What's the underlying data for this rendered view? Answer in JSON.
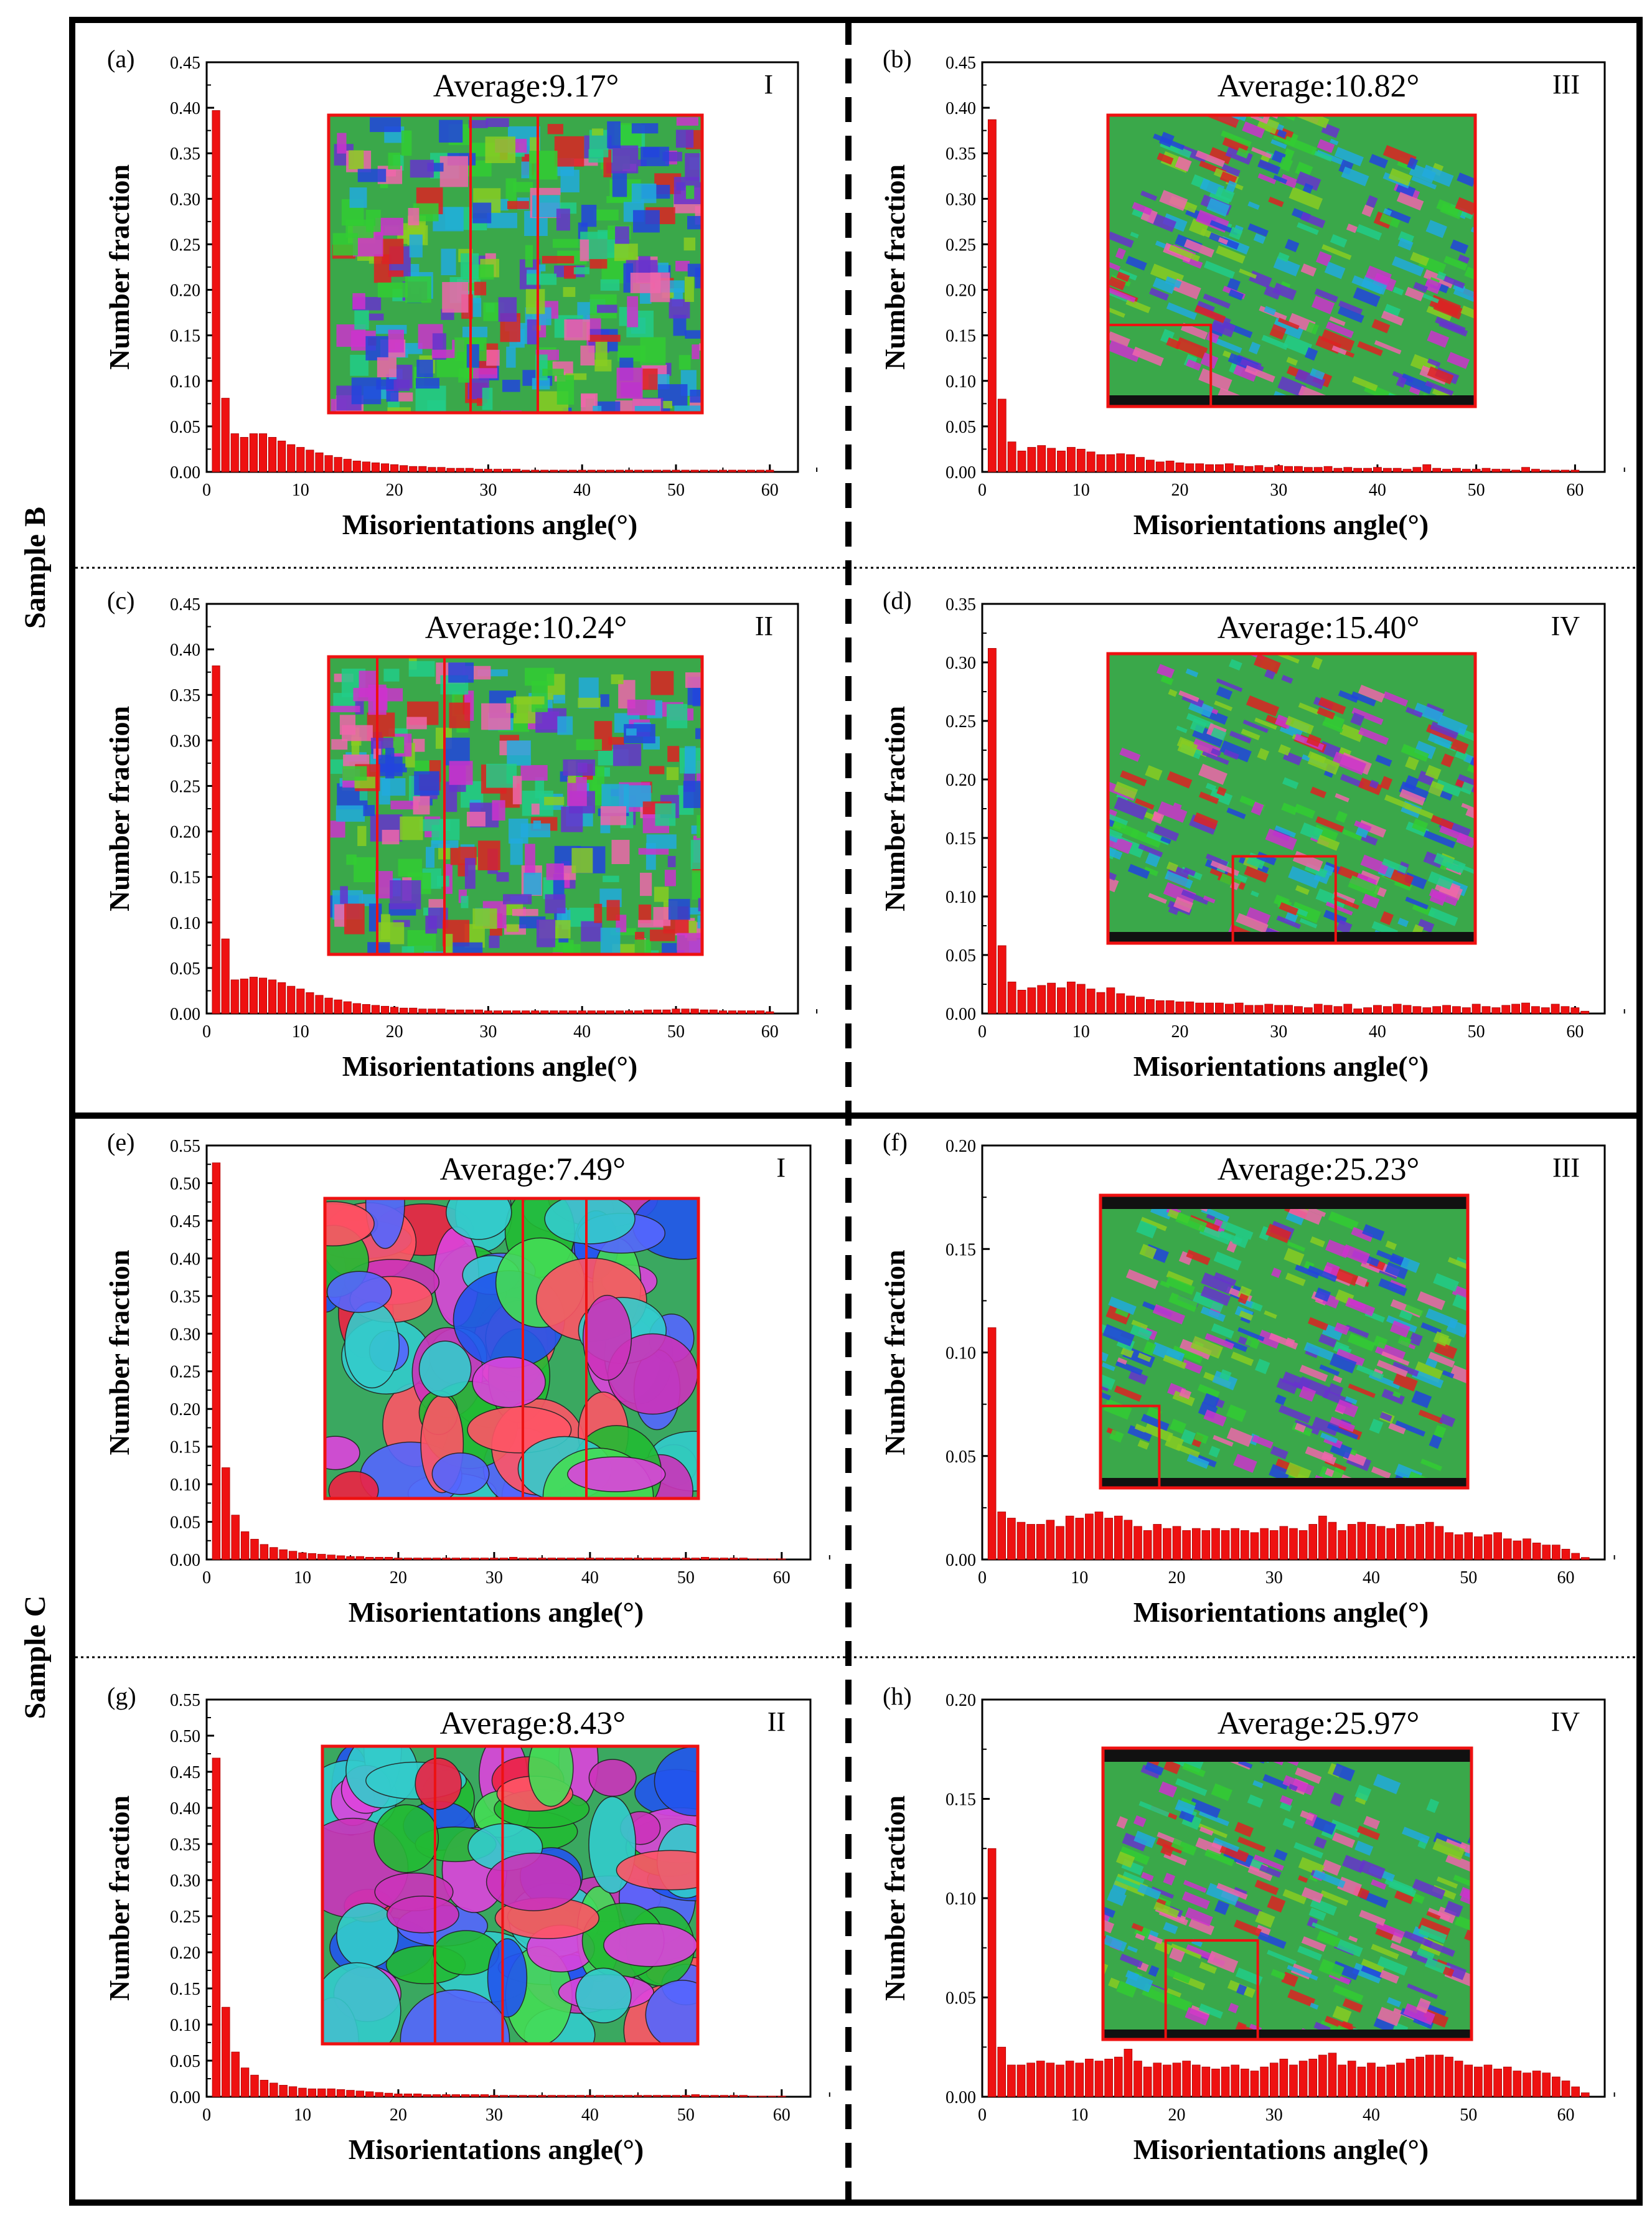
{
  "figure": {
    "sample_labels": [
      "Sample B",
      "Sample C"
    ]
  },
  "chart_data": [
    {
      "id": "a",
      "panel": "(a)",
      "type": "bar",
      "title": "Average:9.17°",
      "region": "I",
      "xlabel": "Misorientations angle(°)",
      "ylabel": "Number fraction",
      "xlim": [
        0,
        63
      ],
      "ylim": [
        0,
        0.45
      ],
      "xticks": [
        "0",
        "10",
        "20",
        "30",
        "40",
        "50",
        "60"
      ],
      "yticks": [
        "0.00",
        "0.05",
        "0.10",
        "0.15",
        "0.20",
        "0.25",
        "0.30",
        "0.35",
        "0.40",
        "0.45"
      ],
      "x": [
        1,
        2,
        3,
        4,
        5,
        6,
        7,
        8,
        9,
        10,
        11,
        12,
        13,
        14,
        15,
        16,
        17,
        18,
        19,
        20,
        21,
        22,
        23,
        24,
        25,
        26,
        27,
        28,
        29,
        30,
        31,
        32,
        33,
        34,
        35,
        36,
        37,
        38,
        39,
        40,
        41,
        42,
        43,
        44,
        45,
        46,
        47,
        48,
        49,
        50,
        51,
        52,
        53,
        54,
        55,
        56,
        57,
        58,
        59,
        60
      ],
      "values": [
        0.397,
        0.081,
        0.042,
        0.038,
        0.042,
        0.042,
        0.038,
        0.034,
        0.03,
        0.027,
        0.024,
        0.021,
        0.018,
        0.016,
        0.014,
        0.012,
        0.011,
        0.01,
        0.009,
        0.008,
        0.007,
        0.006,
        0.006,
        0.005,
        0.005,
        0.004,
        0.004,
        0.004,
        0.003,
        0.003,
        0.003,
        0.003,
        0.003,
        0.002,
        0.002,
        0.002,
        0.002,
        0.002,
        0.002,
        0.002,
        0.002,
        0.002,
        0.002,
        0.002,
        0.002,
        0.002,
        0.002,
        0.002,
        0.002,
        0.002,
        0.002,
        0.002,
        0.002,
        0.002,
        0.002,
        0.002,
        0.002,
        0.002,
        0.002,
        0.002
      ]
    },
    {
      "id": "b",
      "panel": "(b)",
      "type": "bar",
      "title": "Average:10.82°",
      "region": "III",
      "xlabel": "Misorientations angle(°)",
      "ylabel": "Number fraction",
      "xlim": [
        0,
        63
      ],
      "ylim": [
        0,
        0.45
      ],
      "xticks": [
        "0",
        "10",
        "20",
        "30",
        "40",
        "50",
        "60"
      ],
      "yticks": [
        "0.00",
        "0.05",
        "0.10",
        "0.15",
        "0.20",
        "0.25",
        "0.30",
        "0.35",
        "0.40",
        "0.45"
      ],
      "x": [
        1,
        2,
        3,
        4,
        5,
        6,
        7,
        8,
        9,
        10,
        11,
        12,
        13,
        14,
        15,
        16,
        17,
        18,
        19,
        20,
        21,
        22,
        23,
        24,
        25,
        26,
        27,
        28,
        29,
        30,
        31,
        32,
        33,
        34,
        35,
        36,
        37,
        38,
        39,
        40,
        41,
        42,
        43,
        44,
        45,
        46,
        47,
        48,
        49,
        50,
        51,
        52,
        53,
        54,
        55,
        56,
        57,
        58,
        59,
        60
      ],
      "values": [
        0.387,
        0.08,
        0.033,
        0.023,
        0.027,
        0.029,
        0.026,
        0.023,
        0.027,
        0.025,
        0.022,
        0.019,
        0.019,
        0.02,
        0.019,
        0.016,
        0.013,
        0.011,
        0.012,
        0.01,
        0.009,
        0.009,
        0.008,
        0.008,
        0.009,
        0.007,
        0.006,
        0.007,
        0.005,
        0.007,
        0.006,
        0.006,
        0.005,
        0.005,
        0.006,
        0.004,
        0.005,
        0.004,
        0.004,
        0.005,
        0.004,
        0.004,
        0.003,
        0.005,
        0.008,
        0.004,
        0.003,
        0.004,
        0.003,
        0.003,
        0.004,
        0.003,
        0.003,
        0.002,
        0.005,
        0.003,
        0.002,
        0.002,
        0.002,
        0.002
      ]
    },
    {
      "id": "c",
      "panel": "(c)",
      "type": "bar",
      "title": "Average:10.24°",
      "region": "II",
      "xlabel": "Misorientations angle(°)",
      "ylabel": "Number fraction",
      "xlim": [
        0,
        63
      ],
      "ylim": [
        0,
        0.45
      ],
      "xticks": [
        "0",
        "10",
        "20",
        "30",
        "40",
        "50",
        "60"
      ],
      "yticks": [
        "0.00",
        "0.05",
        "0.10",
        "0.15",
        "0.20",
        "0.25",
        "0.30",
        "0.35",
        "0.40",
        "0.45"
      ],
      "x": [
        1,
        2,
        3,
        4,
        5,
        6,
        7,
        8,
        9,
        10,
        11,
        12,
        13,
        14,
        15,
        16,
        17,
        18,
        19,
        20,
        21,
        22,
        23,
        24,
        25,
        26,
        27,
        28,
        29,
        30,
        31,
        32,
        33,
        34,
        35,
        36,
        37,
        38,
        39,
        40,
        41,
        42,
        43,
        44,
        45,
        46,
        47,
        48,
        49,
        50,
        51,
        52,
        53,
        54,
        55,
        56,
        57,
        58,
        59,
        60
      ],
      "values": [
        0.382,
        0.082,
        0.037,
        0.038,
        0.04,
        0.039,
        0.037,
        0.034,
        0.03,
        0.027,
        0.023,
        0.02,
        0.017,
        0.015,
        0.013,
        0.011,
        0.01,
        0.009,
        0.008,
        0.007,
        0.006,
        0.006,
        0.005,
        0.005,
        0.005,
        0.004,
        0.004,
        0.004,
        0.004,
        0.003,
        0.003,
        0.003,
        0.003,
        0.003,
        0.003,
        0.003,
        0.003,
        0.003,
        0.003,
        0.003,
        0.003,
        0.003,
        0.003,
        0.003,
        0.003,
        0.003,
        0.004,
        0.004,
        0.004,
        0.005,
        0.005,
        0.005,
        0.004,
        0.004,
        0.003,
        0.003,
        0.003,
        0.003,
        0.003,
        0.002
      ]
    },
    {
      "id": "d",
      "panel": "(d)",
      "type": "bar",
      "title": "Average:15.40°",
      "region": "IV",
      "xlabel": "Misorientations angle(°)",
      "ylabel": "Number fraction",
      "xlim": [
        0,
        63
      ],
      "ylim": [
        0,
        0.35
      ],
      "xticks": [
        "0",
        "10",
        "20",
        "30",
        "40",
        "50",
        "60"
      ],
      "yticks": [
        "0.00",
        "0.05",
        "0.10",
        "0.15",
        "0.20",
        "0.25",
        "0.30",
        "0.35"
      ],
      "x": [
        1,
        2,
        3,
        4,
        5,
        6,
        7,
        8,
        9,
        10,
        11,
        12,
        13,
        14,
        15,
        16,
        17,
        18,
        19,
        20,
        21,
        22,
        23,
        24,
        25,
        26,
        27,
        28,
        29,
        30,
        31,
        32,
        33,
        34,
        35,
        36,
        37,
        38,
        39,
        40,
        41,
        42,
        43,
        44,
        45,
        46,
        47,
        48,
        49,
        50,
        51,
        52,
        53,
        54,
        55,
        56,
        57,
        58,
        59,
        60,
        61
      ],
      "values": [
        0.312,
        0.058,
        0.027,
        0.02,
        0.022,
        0.024,
        0.026,
        0.022,
        0.027,
        0.025,
        0.021,
        0.018,
        0.022,
        0.017,
        0.015,
        0.014,
        0.012,
        0.011,
        0.011,
        0.01,
        0.01,
        0.009,
        0.009,
        0.009,
        0.008,
        0.009,
        0.007,
        0.007,
        0.008,
        0.007,
        0.007,
        0.006,
        0.005,
        0.008,
        0.007,
        0.006,
        0.008,
        0.004,
        0.005,
        0.007,
        0.006,
        0.008,
        0.007,
        0.006,
        0.005,
        0.006,
        0.007,
        0.006,
        0.005,
        0.008,
        0.006,
        0.005,
        0.007,
        0.008,
        0.009,
        0.006,
        0.005,
        0.008,
        0.006,
        0.005,
        0.002
      ]
    },
    {
      "id": "e",
      "panel": "(e)",
      "type": "bar",
      "title": "Average:7.49°",
      "region": "I",
      "xlabel": "Misorientations angle(°)",
      "ylabel": "Number fraction",
      "xlim": [
        0,
        63
      ],
      "ylim": [
        0,
        0.55
      ],
      "xticks": [
        "0",
        "10",
        "20",
        "30",
        "40",
        "50",
        "60"
      ],
      "yticks": [
        "0.00",
        "0.05",
        "0.10",
        "0.15",
        "0.20",
        "0.25",
        "0.30",
        "0.35",
        "0.40",
        "0.45",
        "0.50",
        "0.55"
      ],
      "x": [
        1,
        2,
        3,
        4,
        5,
        6,
        7,
        8,
        9,
        10,
        11,
        12,
        13,
        14,
        15,
        16,
        17,
        18,
        19,
        20,
        21,
        22,
        23,
        24,
        25,
        26,
        27,
        28,
        29,
        30,
        31,
        32,
        33,
        34,
        35,
        36,
        37,
        38,
        39,
        40,
        41,
        42,
        43,
        44,
        45,
        46,
        47,
        48,
        49,
        50,
        51,
        52,
        53,
        54,
        55,
        56,
        57,
        58,
        59,
        60
      ],
      "values": [
        0.527,
        0.122,
        0.059,
        0.037,
        0.027,
        0.02,
        0.016,
        0.013,
        0.011,
        0.009,
        0.008,
        0.007,
        0.006,
        0.005,
        0.004,
        0.004,
        0.003,
        0.003,
        0.003,
        0.002,
        0.002,
        0.002,
        0.002,
        0.002,
        0.002,
        0.002,
        0.002,
        0.002,
        0.002,
        0.002,
        0.002,
        0.003,
        0.002,
        0.002,
        0.002,
        0.002,
        0.002,
        0.002,
        0.002,
        0.002,
        0.002,
        0.002,
        0.002,
        0.002,
        0.002,
        0.002,
        0.002,
        0.002,
        0.002,
        0.002,
        0.002,
        0.003,
        0.002,
        0.002,
        0.002,
        0.002,
        0.001,
        0.001,
        0.001,
        0.001
      ]
    },
    {
      "id": "f",
      "panel": "(f)",
      "type": "bar",
      "title": "Average:25.23°",
      "region": "III",
      "xlabel": "Misorientations angle(°)",
      "ylabel": "Number fraction",
      "xlim": [
        0,
        64
      ],
      "ylim": [
        0,
        0.2
      ],
      "xticks": [
        "0",
        "10",
        "20",
        "30",
        "40",
        "50",
        "60"
      ],
      "yticks": [
        "0.00",
        "0.05",
        "0.10",
        "0.15",
        "0.20"
      ],
      "x": [
        1,
        2,
        3,
        4,
        5,
        6,
        7,
        8,
        9,
        10,
        11,
        12,
        13,
        14,
        15,
        16,
        17,
        18,
        19,
        20,
        21,
        22,
        23,
        24,
        25,
        26,
        27,
        28,
        29,
        30,
        31,
        32,
        33,
        34,
        35,
        36,
        37,
        38,
        39,
        40,
        41,
        42,
        43,
        44,
        45,
        46,
        47,
        48,
        49,
        50,
        51,
        52,
        53,
        54,
        55,
        56,
        57,
        58,
        59,
        60,
        61,
        62
      ],
      "values": [
        0.112,
        0.023,
        0.02,
        0.018,
        0.017,
        0.017,
        0.019,
        0.016,
        0.021,
        0.02,
        0.022,
        0.023,
        0.02,
        0.021,
        0.019,
        0.016,
        0.014,
        0.017,
        0.015,
        0.016,
        0.014,
        0.015,
        0.014,
        0.015,
        0.014,
        0.015,
        0.014,
        0.013,
        0.015,
        0.014,
        0.016,
        0.015,
        0.014,
        0.017,
        0.021,
        0.018,
        0.014,
        0.017,
        0.018,
        0.017,
        0.016,
        0.015,
        0.017,
        0.016,
        0.017,
        0.018,
        0.016,
        0.013,
        0.012,
        0.013,
        0.011,
        0.012,
        0.013,
        0.01,
        0.009,
        0.01,
        0.008,
        0.007,
        0.007,
        0.005,
        0.003,
        0.001
      ]
    },
    {
      "id": "g",
      "panel": "(g)",
      "type": "bar",
      "title": "Average:8.43°",
      "region": "II",
      "xlabel": "Misorientations angle(°)",
      "ylabel": "Number fraction",
      "xlim": [
        0,
        63
      ],
      "ylim": [
        0,
        0.55
      ],
      "xticks": [
        "0",
        "10",
        "20",
        "30",
        "40",
        "50",
        "60"
      ],
      "yticks": [
        "0.00",
        "0.05",
        "0.10",
        "0.15",
        "0.20",
        "0.25",
        "0.30",
        "0.35",
        "0.40",
        "0.45",
        "0.50",
        "0.55"
      ],
      "x": [
        1,
        2,
        3,
        4,
        5,
        6,
        7,
        8,
        9,
        10,
        11,
        12,
        13,
        14,
        15,
        16,
        17,
        18,
        19,
        20,
        21,
        22,
        23,
        24,
        25,
        26,
        27,
        28,
        29,
        30,
        31,
        32,
        33,
        34,
        35,
        36,
        37,
        38,
        39,
        40,
        41,
        42,
        43,
        44,
        45,
        46,
        47,
        48,
        49,
        50,
        51,
        52,
        53,
        54,
        55,
        56,
        57,
        58,
        59,
        60
      ],
      "values": [
        0.469,
        0.124,
        0.062,
        0.04,
        0.03,
        0.023,
        0.019,
        0.016,
        0.014,
        0.012,
        0.011,
        0.011,
        0.011,
        0.01,
        0.009,
        0.008,
        0.007,
        0.006,
        0.005,
        0.004,
        0.004,
        0.004,
        0.003,
        0.003,
        0.003,
        0.003,
        0.003,
        0.003,
        0.003,
        0.002,
        0.002,
        0.002,
        0.002,
        0.002,
        0.002,
        0.002,
        0.002,
        0.002,
        0.002,
        0.002,
        0.002,
        0.002,
        0.002,
        0.002,
        0.002,
        0.002,
        0.002,
        0.002,
        0.002,
        0.002,
        0.003,
        0.002,
        0.002,
        0.002,
        0.002,
        0.002,
        0.001,
        0.001,
        0.001,
        0.001
      ]
    },
    {
      "id": "h",
      "panel": "(h)",
      "type": "bar",
      "title": "Average:25.97°",
      "region": "IV",
      "xlabel": "Misorientations angle(°)",
      "ylabel": "Number fraction",
      "xlim": [
        0,
        64
      ],
      "ylim": [
        0,
        0.2
      ],
      "xticks": [
        "0",
        "10",
        "20",
        "30",
        "40",
        "50",
        "60"
      ],
      "yticks": [
        "0.00",
        "0.05",
        "0.10",
        "0.15",
        "0.20"
      ],
      "x": [
        1,
        2,
        3,
        4,
        5,
        6,
        7,
        8,
        9,
        10,
        11,
        12,
        13,
        14,
        15,
        16,
        17,
        18,
        19,
        20,
        21,
        22,
        23,
        24,
        25,
        26,
        27,
        28,
        29,
        30,
        31,
        32,
        33,
        34,
        35,
        36,
        37,
        38,
        39,
        40,
        41,
        42,
        43,
        44,
        45,
        46,
        47,
        48,
        49,
        50,
        51,
        52,
        53,
        54,
        55,
        56,
        57,
        58,
        59,
        60,
        61,
        62
      ],
      "values": [
        0.125,
        0.025,
        0.016,
        0.016,
        0.017,
        0.018,
        0.017,
        0.016,
        0.018,
        0.017,
        0.019,
        0.018,
        0.019,
        0.02,
        0.024,
        0.018,
        0.015,
        0.017,
        0.016,
        0.017,
        0.018,
        0.016,
        0.015,
        0.014,
        0.015,
        0.016,
        0.014,
        0.013,
        0.015,
        0.017,
        0.019,
        0.016,
        0.018,
        0.019,
        0.021,
        0.022,
        0.016,
        0.018,
        0.015,
        0.017,
        0.015,
        0.016,
        0.017,
        0.019,
        0.02,
        0.021,
        0.021,
        0.02,
        0.018,
        0.016,
        0.015,
        0.016,
        0.014,
        0.015,
        0.013,
        0.012,
        0.013,
        0.012,
        0.01,
        0.008,
        0.005,
        0.002
      ]
    }
  ]
}
